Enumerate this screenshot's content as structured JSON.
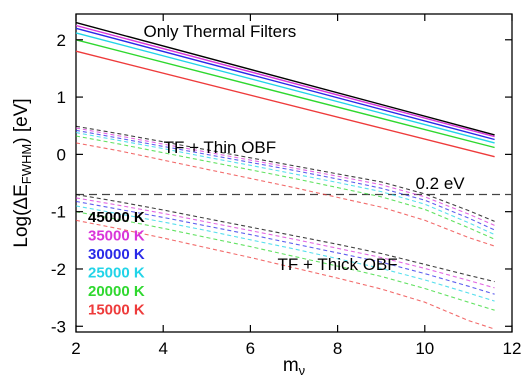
{
  "chart_data": {
    "type": "line",
    "xlabel": "m",
    "xlabel_sub": "ν",
    "ylabel_prefix": "Log(ΔE",
    "ylabel_sub": "FWHM",
    "ylabel_suffix": ")  [eV]",
    "xlim": [
      2,
      12
    ],
    "ylim": [
      -3.1,
      2.45
    ],
    "xticks": [
      2,
      4,
      6,
      8,
      10,
      12
    ],
    "yticks": [
      -3,
      -2,
      -1,
      0,
      1,
      2
    ],
    "grid": false,
    "legend_position": "bottom-left",
    "annotations": [
      {
        "text": "Only Thermal Filters",
        "x": 5.3,
        "y": 2.05
      },
      {
        "text": "TF + Thin OBF",
        "x": 5.3,
        "y": 0.02
      },
      {
        "text": "0.2 eV",
        "x": 10.35,
        "y": -0.6
      },
      {
        "text": "TF + Thick OBF",
        "x": 8.0,
        "y": -2.02
      }
    ],
    "reference_line": {
      "y": -0.7,
      "label": "0.2 eV",
      "style": "dashed",
      "color": "#444444"
    },
    "series": [
      {
        "name": "45000 K",
        "color": "#000000",
        "thermal": {
          "x": [
            2,
            11.6
          ],
          "y": [
            2.3,
            0.34
          ]
        },
        "thin": {
          "x": [
            2,
            3,
            4,
            5,
            6,
            7,
            8,
            9,
            10,
            11,
            11.6
          ],
          "y": [
            0.49,
            0.36,
            0.22,
            0.08,
            -0.06,
            -0.2,
            -0.34,
            -0.48,
            -0.69,
            -0.98,
            -1.17
          ]
        },
        "thick": {
          "x": [
            2,
            3,
            4,
            5,
            6,
            7,
            8,
            9,
            10,
            11,
            11.6
          ],
          "y": [
            -0.7,
            -0.83,
            -0.97,
            -1.12,
            -1.27,
            -1.42,
            -1.57,
            -1.73,
            -1.92,
            -2.11,
            -2.22
          ]
        }
      },
      {
        "name": "35000 K",
        "color": "#d936d9",
        "thermal": {
          "x": [
            2,
            11.6
          ],
          "y": [
            2.25,
            0.31
          ]
        },
        "thin": {
          "x": [
            2,
            3,
            4,
            5,
            6,
            7,
            8,
            9,
            10,
            11,
            11.6
          ],
          "y": [
            0.46,
            0.32,
            0.18,
            0.04,
            -0.1,
            -0.24,
            -0.38,
            -0.53,
            -0.74,
            -1.04,
            -1.24
          ]
        },
        "thick": {
          "x": [
            2,
            3,
            4,
            5,
            6,
            7,
            8,
            9,
            10,
            11,
            11.6
          ],
          "y": [
            -0.76,
            -0.89,
            -1.03,
            -1.18,
            -1.33,
            -1.48,
            -1.64,
            -1.8,
            -1.99,
            -2.2,
            -2.33
          ]
        }
      },
      {
        "name": "30000 K",
        "color": "#2a2ae8",
        "thermal": {
          "x": [
            2,
            11.6
          ],
          "y": [
            2.2,
            0.26
          ]
        },
        "thin": {
          "x": [
            2,
            3,
            4,
            5,
            6,
            7,
            8,
            9,
            10,
            11,
            11.6
          ],
          "y": [
            0.42,
            0.28,
            0.14,
            0.0,
            -0.14,
            -0.28,
            -0.43,
            -0.59,
            -0.8,
            -1.11,
            -1.32
          ]
        },
        "thick": {
          "x": [
            2,
            3,
            4,
            5,
            6,
            7,
            8,
            9,
            10,
            11,
            11.6
          ],
          "y": [
            -0.82,
            -0.96,
            -1.1,
            -1.25,
            -1.4,
            -1.56,
            -1.72,
            -1.88,
            -2.08,
            -2.3,
            -2.44
          ]
        }
      },
      {
        "name": "25000 K",
        "color": "#22d4e8",
        "thermal": {
          "x": [
            2,
            11.6
          ],
          "y": [
            2.12,
            0.2
          ]
        },
        "thin": {
          "x": [
            2,
            3,
            4,
            5,
            6,
            7,
            8,
            9,
            10,
            11,
            11.6
          ],
          "y": [
            0.38,
            0.24,
            0.1,
            -0.05,
            -0.19,
            -0.34,
            -0.49,
            -0.65,
            -0.87,
            -1.19,
            -1.4
          ]
        },
        "thick": {
          "x": [
            2,
            3,
            4,
            5,
            6,
            7,
            8,
            9,
            10,
            11,
            11.6
          ],
          "y": [
            -0.9,
            -1.04,
            -1.18,
            -1.33,
            -1.49,
            -1.65,
            -1.82,
            -1.99,
            -2.19,
            -2.42,
            -2.56
          ]
        }
      },
      {
        "name": "20000 K",
        "color": "#2fd82f",
        "thermal": {
          "x": [
            2,
            11.6
          ],
          "y": [
            2.0,
            0.12
          ]
        },
        "thin": {
          "x": [
            2,
            3,
            4,
            5,
            6,
            7,
            8,
            9,
            10,
            11,
            11.6
          ],
          "y": [
            0.32,
            0.18,
            0.03,
            -0.12,
            -0.27,
            -0.42,
            -0.58,
            -0.74,
            -0.96,
            -1.28,
            -1.48
          ]
        },
        "thick": {
          "x": [
            2,
            3,
            4,
            5,
            6,
            7,
            8,
            9,
            10,
            11,
            11.6
          ],
          "y": [
            -1.0,
            -1.14,
            -1.29,
            -1.45,
            -1.61,
            -1.78,
            -1.95,
            -2.13,
            -2.34,
            -2.58,
            -2.72
          ]
        }
      },
      {
        "name": "15000 K",
        "color": "#ee3b3b",
        "thermal": {
          "x": [
            2,
            11.6
          ],
          "y": [
            1.8,
            -0.04
          ]
        },
        "thin": {
          "x": [
            2,
            3,
            4,
            5,
            6,
            7,
            8,
            9,
            10,
            11,
            11.6
          ],
          "y": [
            0.2,
            0.06,
            -0.1,
            -0.26,
            -0.42,
            -0.58,
            -0.75,
            -0.92,
            -1.15,
            -1.45,
            -1.6
          ]
        },
        "thick": {
          "x": [
            2,
            3,
            4,
            5,
            6,
            7,
            8,
            9,
            10,
            11,
            11.6
          ],
          "y": [
            -1.15,
            -1.3,
            -1.46,
            -1.63,
            -1.8,
            -1.98,
            -2.16,
            -2.35,
            -2.58,
            -2.9,
            -3.05
          ]
        }
      }
    ]
  }
}
